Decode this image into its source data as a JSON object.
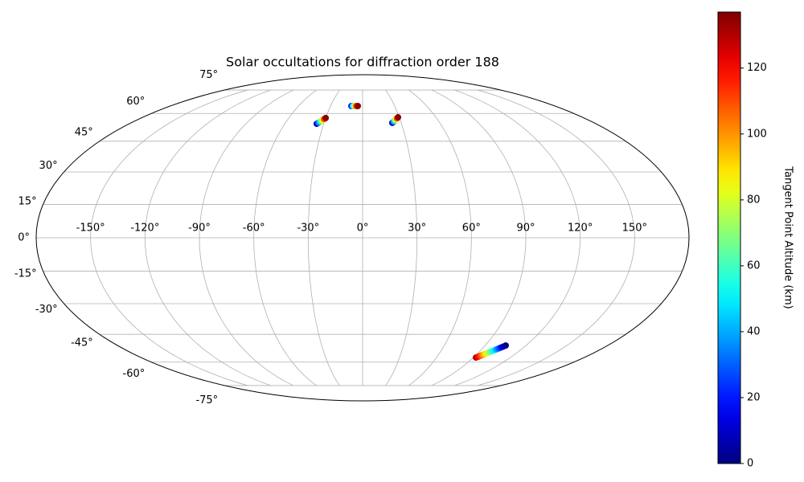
{
  "chart_data": {
    "type": "scatter",
    "projection": "mollweide",
    "title": "Solar occultations for diffraction order 188",
    "x": [
      -35.4,
      -34.3,
      -33.2,
      -32.1,
      -31.0,
      -30.0,
      -10.5,
      -9.0,
      -7.5,
      -6.0,
      -4.5,
      23.1,
      24.3,
      25.5,
      26.6,
      27.8,
      29.0,
      92.1,
      93.1,
      94.1,
      95.1,
      96.1,
      97.1,
      98.1,
      99.1,
      100.1,
      101.1,
      102.1,
      103.1,
      104.1,
      105.1
    ],
    "y": [
      54.2,
      54.8,
      55.5,
      56.1,
      56.8,
      57.4,
      64.4,
      64.4,
      64.4,
      64.4,
      64.4,
      54.7,
      55.3,
      56.0,
      56.6,
      57.2,
      57.8,
      -57.4,
      -56.9,
      -56.4,
      -55.9,
      -55.4,
      -54.9,
      -54.4,
      -53.9,
      -53.4,
      -52.9,
      -52.4,
      -51.9,
      -51.4,
      -50.8
    ],
    "c": [
      10,
      35,
      60,
      85,
      110,
      135,
      20,
      50,
      80,
      110,
      135,
      10,
      35,
      60,
      85,
      110,
      135,
      130,
      120,
      110,
      100,
      90,
      80,
      70,
      60,
      50,
      40,
      30,
      20,
      10,
      0
    ],
    "colormap": "jet",
    "clim": [
      0,
      137
    ],
    "cticks": [
      0,
      20,
      40,
      60,
      80,
      100,
      120
    ],
    "clabel": "Tangent Point Altitude (km)",
    "xlim": [
      -180,
      180
    ],
    "ylim": [
      -90,
      90
    ],
    "xticks": [
      {
        "value": -150,
        "label": "-150°"
      },
      {
        "value": -120,
        "label": "-120°"
      },
      {
        "value": -90,
        "label": "-90°"
      },
      {
        "value": -60,
        "label": "-60°"
      },
      {
        "value": -30,
        "label": "-30°"
      },
      {
        "value": 0,
        "label": "0°"
      },
      {
        "value": 30,
        "label": "30°"
      },
      {
        "value": 60,
        "label": "60°"
      },
      {
        "value": 90,
        "label": "90°"
      },
      {
        "value": 120,
        "label": "120°"
      },
      {
        "value": 150,
        "label": "150°"
      }
    ],
    "yticks": [
      {
        "value": -75,
        "label": "-75°"
      },
      {
        "value": -60,
        "label": "-60°"
      },
      {
        "value": -45,
        "label": "-45°"
      },
      {
        "value": -30,
        "label": "-30°"
      },
      {
        "value": -15,
        "label": "-15°"
      },
      {
        "value": 0,
        "label": "0°"
      },
      {
        "value": 15,
        "label": "15°"
      },
      {
        "value": 30,
        "label": "30°"
      },
      {
        "value": 45,
        "label": "45°"
      },
      {
        "value": 60,
        "label": "60°"
      },
      {
        "value": 75,
        "label": "75°"
      }
    ],
    "grid": true
  }
}
